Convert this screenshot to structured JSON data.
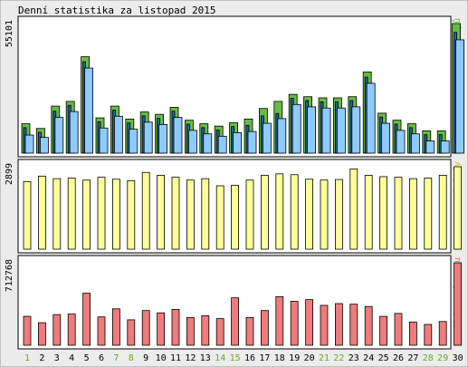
{
  "chart_data": {
    "type": "bar",
    "title": "Denní statistika za listopad 2015",
    "days": [
      "1",
      "2",
      "3",
      "4",
      "5",
      "6",
      "7",
      "8",
      "9",
      "10",
      "11",
      "12",
      "13",
      "14",
      "15",
      "16",
      "17",
      "18",
      "19",
      "20",
      "21",
      "22",
      "23",
      "24",
      "25",
      "26",
      "27",
      "28",
      "29",
      "30"
    ],
    "weekend_days": [
      "1",
      "7",
      "8",
      "14",
      "15",
      "21",
      "22",
      "28",
      "29"
    ],
    "colors": {
      "hits": "#66bb44",
      "files": "#1a66aa",
      "pages": "#8fcaff",
      "visitors": "#ffff99",
      "kbytes": "#f07b7b",
      "weekend_label": "#66aa22",
      "weekday_label": "#000000"
    },
    "panels": [
      {
        "id": "hits-files-pages",
        "ymax_label": "55101",
        "ylim": [
          0,
          55101
        ],
        "legend": [
          "Stránek",
          "/",
          "Souborů",
          "/",
          "Přístupů"
        ],
        "legend_colors": [
          "#1a66aa",
          "#000000",
          "#1a66aa",
          "#000000",
          "#66bb44"
        ],
        "series": [
          {
            "name": "Přístupů",
            "values": [
              12500,
              10500,
              20000,
              22000,
              41000,
              15000,
              20000,
              14500,
              17500,
              16500,
              19500,
              14000,
              12500,
              11500,
              13000,
              14500,
              19000,
              22000,
              25000,
              24000,
              23500,
              23500,
              24000,
              34500,
              17000,
              14000,
              12500,
              9500,
              9500,
              55101
            ]
          },
          {
            "name": "Souborů",
            "values": [
              12000,
              10000,
              19000,
              21500,
              40000,
              14500,
              19500,
              14000,
              17000,
              16000,
              19000,
              13500,
              12000,
              11000,
              12500,
              13000,
              17000,
              18000,
              24500,
              23500,
              23000,
              23000,
              23500,
              33500,
              16500,
              13500,
              12000,
              9000,
              9000,
              52500
            ]
          },
          {
            "name": "Stránek",
            "values": [
              10000,
              9000,
              17500,
              20000,
              38500,
              13000,
              18000,
              12500,
              15500,
              14500,
              17500,
              12000,
              10500,
              9500,
              11000,
              11500,
              15000,
              17000,
              23000,
              22000,
              21500,
              21500,
              22000,
              32000,
              15000,
              12000,
              10500,
              7500,
              7500,
              50500
            ]
          }
        ]
      },
      {
        "id": "visitors",
        "ymax_label": "2899",
        "ylim": [
          0,
          2899
        ],
        "legend": [
          "Návštěv"
        ],
        "legend_colors": [
          "#c8c800"
        ],
        "series": [
          {
            "name": "Návštěv",
            "values": [
              2380,
              2570,
              2480,
              2500,
              2430,
              2530,
              2460,
              2410,
              2700,
              2600,
              2530,
              2430,
              2480,
              2230,
              2250,
              2430,
              2600,
              2650,
              2620,
              2460,
              2430,
              2450,
              2820,
              2600,
              2550,
              2530,
              2480,
              2500,
              2600,
              2899
            ]
          }
        ]
      },
      {
        "id": "kbytes",
        "ymax_label": "712768",
        "ylim": [
          0,
          712768
        ],
        "legend": [
          "Objem přenosu"
        ],
        "legend_colors": [
          "#e07070"
        ],
        "series": [
          {
            "name": "Objem přenosu",
            "values": [
              250000,
              195000,
              265000,
              270000,
              450000,
              245000,
              315000,
              220000,
              300000,
              280000,
              310000,
              240000,
              255000,
              230000,
              410000,
              240000,
              300000,
              420000,
              380000,
              395000,
              345000,
              360000,
              355000,
              335000,
              250000,
              275000,
              200000,
              180000,
              205000,
              712768
            ]
          }
        ]
      }
    ]
  }
}
